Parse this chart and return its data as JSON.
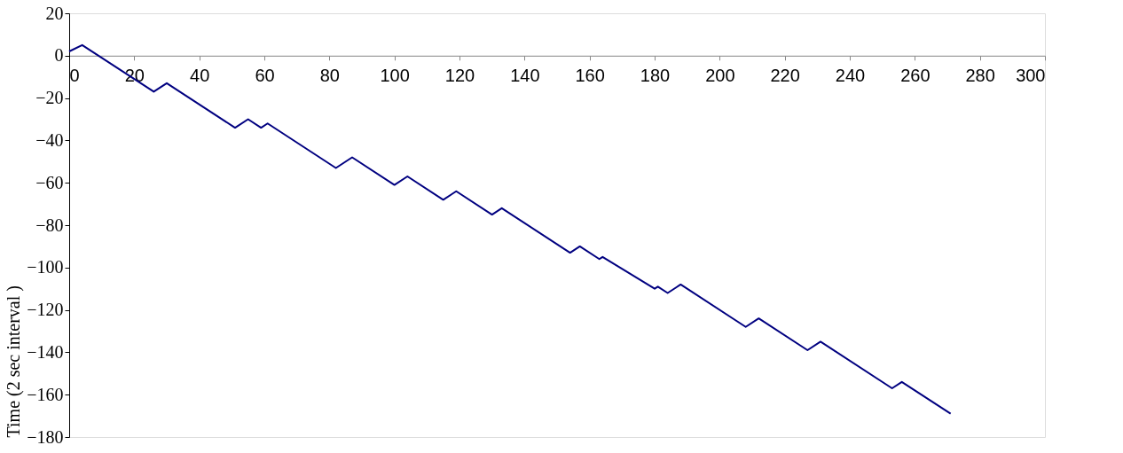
{
  "chart_data": {
    "type": "line",
    "ylabel": "Time (2 sec interval )",
    "x": [
      0,
      4,
      26,
      30,
      51,
      55,
      59,
      61,
      82,
      87,
      100,
      104,
      115,
      119,
      130,
      133,
      154,
      157,
      163,
      164,
      180,
      181,
      184,
      188,
      208,
      212,
      227,
      231,
      253,
      256,
      271
    ],
    "series": [
      {
        "color": "#000080",
        "values": [
          2,
          5,
          -17,
          -13,
          -34,
          -30,
          -34,
          -32,
          -53,
          -48,
          -61,
          -57,
          -68,
          -64,
          -75,
          -72,
          -93,
          -90,
          -96,
          -95,
          -110,
          -109,
          -112,
          -108,
          -128,
          -124,
          -139,
          -135,
          -157,
          -154,
          -169
        ]
      }
    ],
    "xlim": [
      0,
      300
    ],
    "xticks": [
      0,
      20,
      40,
      60,
      80,
      100,
      120,
      140,
      160,
      180,
      200,
      220,
      240,
      260,
      280,
      300
    ],
    "ylim": [
      -180,
      20
    ],
    "yticks": [
      20,
      0,
      -20,
      -40,
      -60,
      -80,
      -100,
      -120,
      -140,
      -160,
      -180
    ],
    "grid": false,
    "legend": false,
    "marker": "none",
    "line_style": "solid"
  }
}
